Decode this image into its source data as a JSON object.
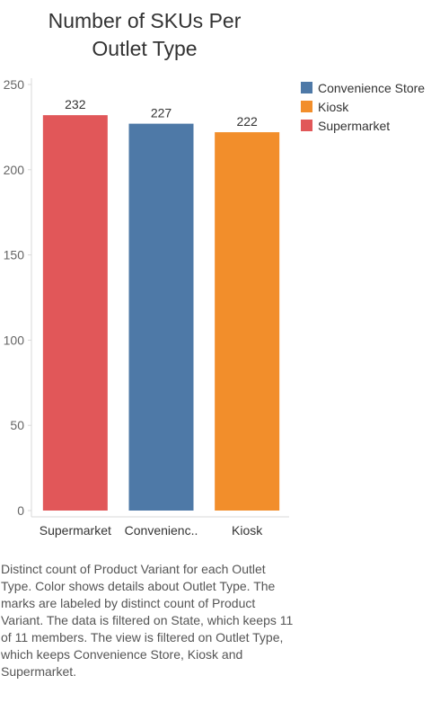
{
  "chart_data": {
    "type": "bar",
    "title_lines": [
      "Number of SKUs Per",
      "Outlet Type"
    ],
    "categories": [
      "Supermarket",
      "Convenienc..",
      "Kiosk"
    ],
    "values": [
      232,
      227,
      222
    ],
    "data_labels": [
      "232",
      "227",
      "222"
    ],
    "bar_colors": [
      "#e15759",
      "#4e79a7",
      "#f28e2b"
    ],
    "ylim": [
      0,
      250
    ],
    "yticks": [
      0,
      50,
      100,
      150,
      200,
      250
    ],
    "xlabel": "",
    "ylabel": "",
    "grid": false,
    "legend_position": "right",
    "legend": [
      {
        "label": "Convenience Store",
        "color": "#4e79a7"
      },
      {
        "label": "Kiosk",
        "color": "#f28e2b"
      },
      {
        "label": "Supermarket",
        "color": "#e15759"
      }
    ]
  },
  "caption": "Distinct count of Product Variant for each Outlet Type.  Color shows details about Outlet Type.  The marks are labeled by distinct count of Product Variant. The data is filtered on State, which keeps 11 of 11 members. The view is filtered on Outlet Type, which keeps Convenience Store, Kiosk and Supermarket."
}
